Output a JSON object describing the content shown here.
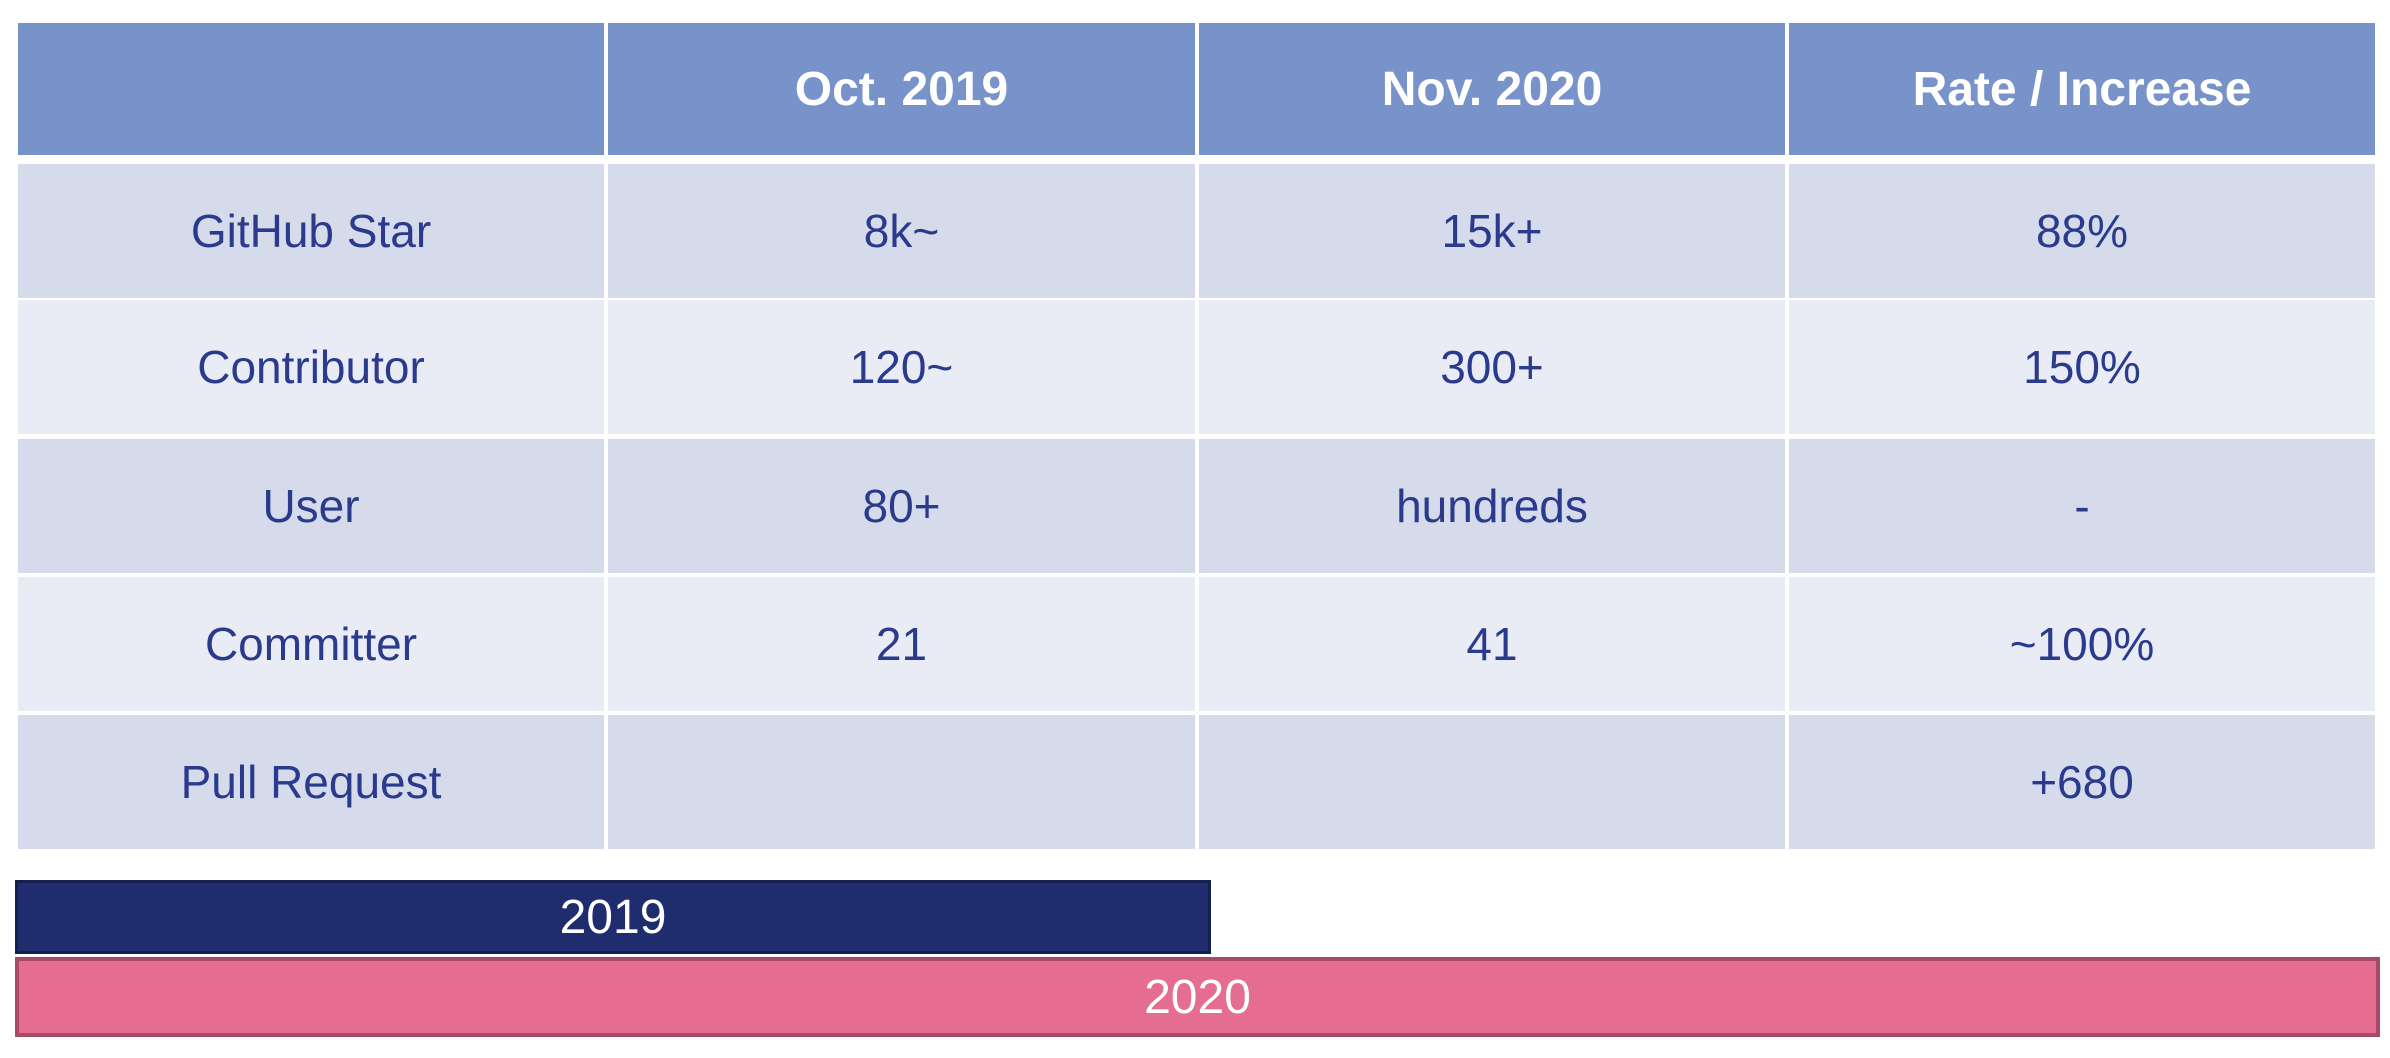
{
  "table": {
    "columns": [
      "Oct. 2019",
      "Nov. 2020",
      "Rate / Increase"
    ],
    "rows": [
      [
        "GitHub Star",
        "8k~",
        "15k+",
        "88%"
      ],
      [
        "Contributor",
        "120~",
        "300+",
        "150%"
      ],
      [
        "User",
        "80+",
        "hundreds",
        "-"
      ],
      [
        "Committer",
        "21",
        "41",
        "~100%"
      ],
      [
        "Pull Request",
        null,
        null,
        "+680"
      ]
    ]
  },
  "timeline": [
    "2019",
    "2020"
  ]
}
